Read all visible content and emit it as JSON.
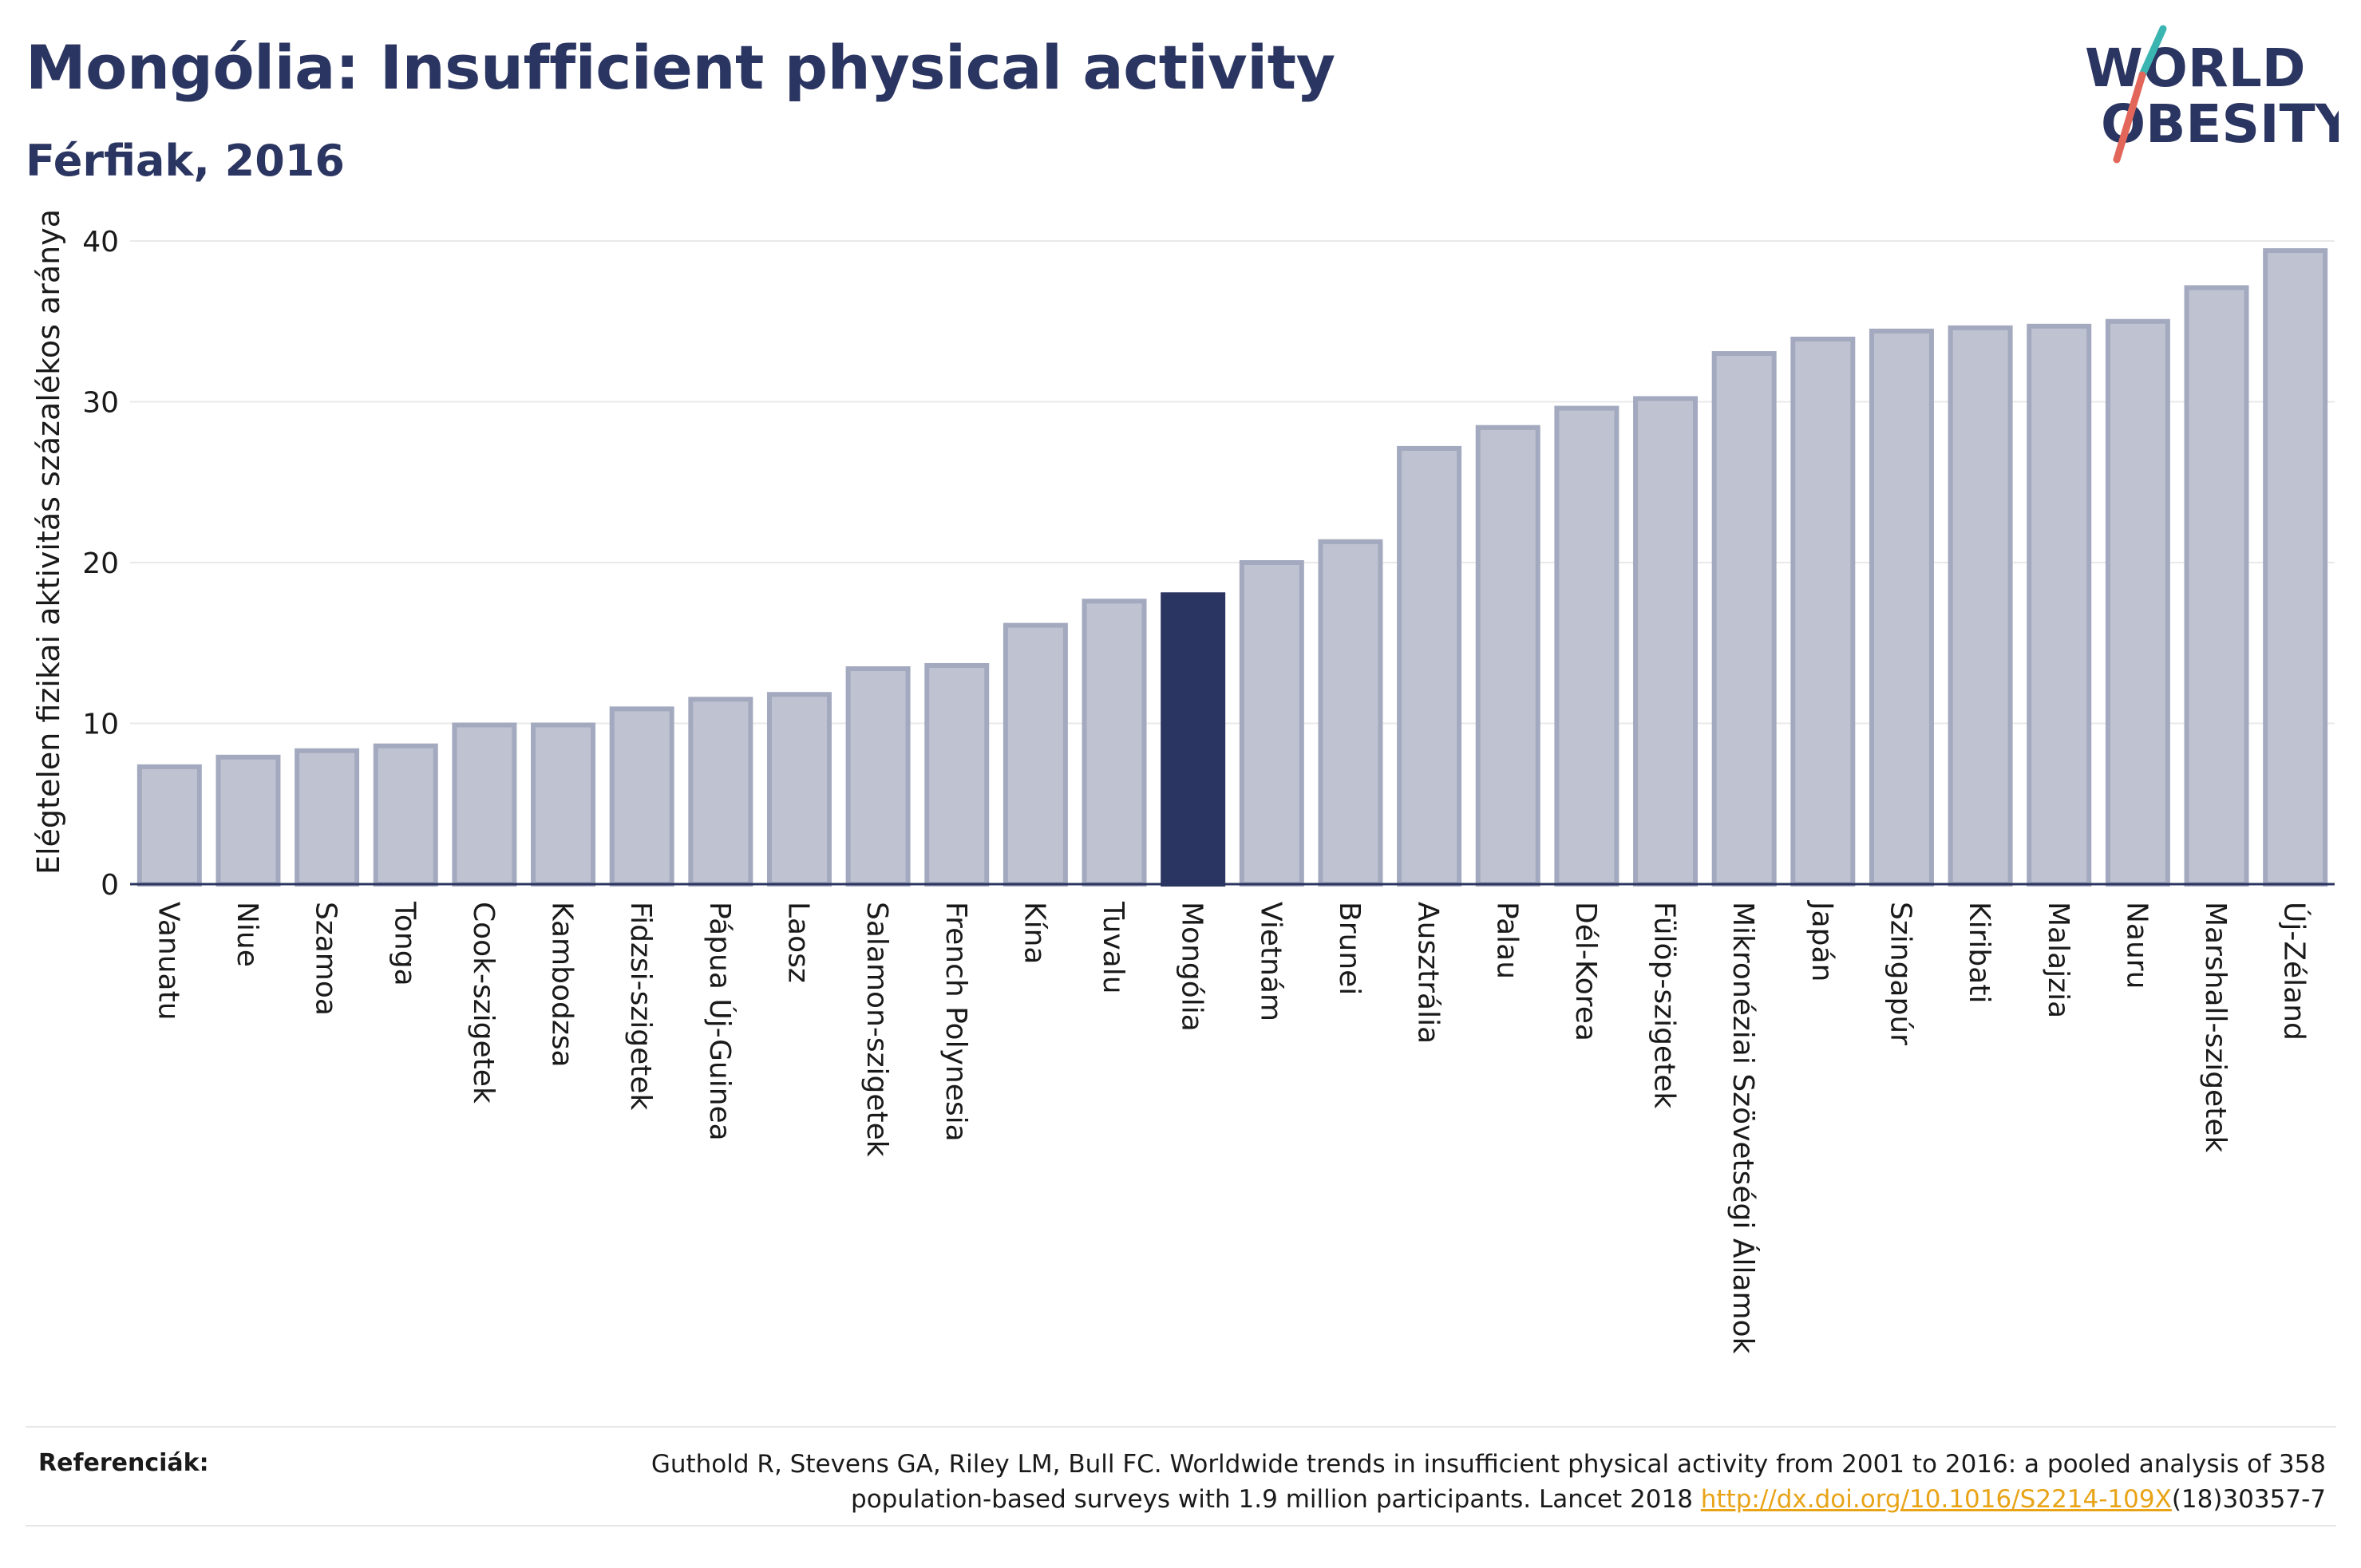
{
  "header": {
    "title": "Mongólia: Insufficient physical activity",
    "subtitle": "Férfiak, 2016"
  },
  "logo": {
    "line1": "WORLD",
    "line2": "OBESITY"
  },
  "chart_data": {
    "type": "bar",
    "title": "Mongólia: Insufficient physical activity",
    "subtitle": "Férfiak, 2016",
    "xlabel": "",
    "ylabel": "Elégtelen fizikai aktivitás százalékos aránya",
    "ylim": [
      0,
      40
    ],
    "yticks": [
      0,
      10,
      20,
      30,
      40
    ],
    "grid": true,
    "highlight": "Mongólia",
    "colors": {
      "bar": "#bfc3d1",
      "bar_border": "#a3a9be",
      "highlight": "#2b3561",
      "grid": "#e9e9e9",
      "axis": "#2b3561"
    },
    "categories": [
      "Vanuatu",
      "Niue",
      "Szamoa",
      "Tonga",
      "Cook-szigetek",
      "Kambodzsa",
      "Fidzsi-szigetek",
      "Pápua Új-Guinea",
      "Laosz",
      "Salamon-szigetek",
      "French Polynesia",
      "Kína",
      "Tuvalu",
      "Mongólia",
      "Vietnám",
      "Brunei",
      "Ausztrália",
      "Palau",
      "Dél-Korea",
      "Fülöp-szigetek",
      "Mikronéziai Szövetségi Államok",
      "Japán",
      "Szingapúr",
      "Kiribati",
      "Malajzia",
      "Nauru",
      "Marshall-szigetek",
      "Új-Zéland"
    ],
    "values": [
      7.3,
      7.9,
      8.3,
      8.6,
      9.9,
      9.9,
      10.9,
      11.5,
      11.8,
      13.4,
      13.6,
      16.1,
      17.6,
      18.0,
      20.0,
      21.3,
      27.1,
      28.4,
      29.6,
      30.2,
      33.0,
      33.9,
      34.4,
      34.6,
      34.7,
      35.0,
      37.1,
      39.4
    ]
  },
  "references": {
    "label": "Referenciák:",
    "line1": "Guthold R, Stevens GA, Riley LM, Bull FC. Worldwide trends in insufficient physical activity from 2001 to 2016: a pooled analysis of 358",
    "line2_before": "population-based surveys with 1.9 million participants. Lancet 2018 ",
    "link": "http://dx.doi.org/10.1016/S2214-109X",
    "line2_after": "(18)30357-7"
  }
}
